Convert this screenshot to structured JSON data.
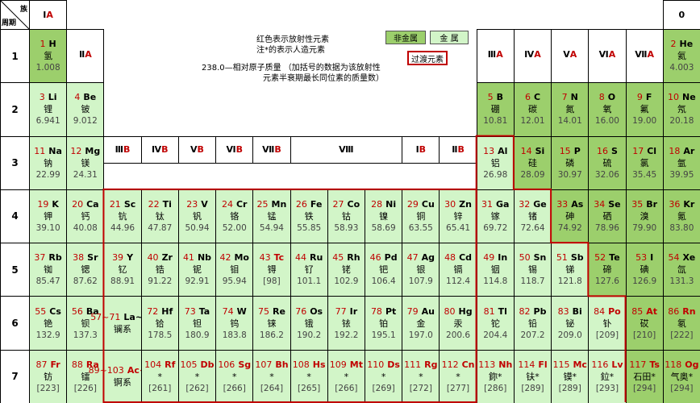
{
  "header": {
    "group_word": "族",
    "period_word": "周期",
    "left": {
      "roman": "Ⅰ",
      "letter": "A"
    },
    "right": "0"
  },
  "notes": [
    "红色表示放射性元素",
    "注*的表示人造元素",
    "238.0—相对原子质量 （加括号的数据为该放射性",
    "元素半衰期最长同位素的质量数）"
  ],
  "legend": {
    "nonmetal": {
      "label": "非金属",
      "color": "#9ccf6c"
    },
    "metal": {
      "label": "金 属",
      "color": "#d2f5c8"
    },
    "transition": {
      "label": "过渡元素",
      "color": "#c00000"
    }
  },
  "radioactive_color": "#c00000",
  "periods": [
    {
      "label": "1",
      "cells": [
        {
          "n": "1",
          "sym": "H",
          "name": "氢",
          "mass": "1.008",
          "kind": "nonmetal"
        },
        {
          "roman": "Ⅱ",
          "letter": "A"
        },
        null,
        null,
        null,
        null,
        null,
        null,
        null,
        null,
        null,
        null,
        {
          "roman": "Ⅲ",
          "letter": "A"
        },
        {
          "roman": "Ⅳ",
          "letter": "A"
        },
        {
          "roman": "Ⅴ",
          "letter": "A"
        },
        {
          "roman": "Ⅵ",
          "letter": "A"
        },
        {
          "roman": "Ⅶ",
          "letter": "A"
        },
        {
          "n": "2",
          "sym": "He",
          "name": "氦",
          "mass": "4.003",
          "kind": "nonmetal"
        }
      ]
    },
    {
      "label": "2",
      "cells": [
        {
          "n": "3",
          "sym": "Li",
          "name": "锂",
          "mass": "6.941",
          "kind": "metal"
        },
        {
          "n": "4",
          "sym": "Be",
          "name": "铍",
          "mass": "9.012",
          "kind": "metal"
        },
        null,
        null,
        null,
        null,
        null,
        null,
        null,
        null,
        null,
        null,
        {
          "n": "5",
          "sym": "B",
          "name": "硼",
          "mass": "10.81",
          "kind": "nonmetal"
        },
        {
          "n": "6",
          "sym": "C",
          "name": "碳",
          "mass": "12.01",
          "kind": "nonmetal"
        },
        {
          "n": "7",
          "sym": "N",
          "name": "氮",
          "mass": "14.01",
          "kind": "nonmetal"
        },
        {
          "n": "8",
          "sym": "O",
          "name": "氧",
          "mass": "16.00",
          "kind": "nonmetal"
        },
        {
          "n": "9",
          "sym": "F",
          "name": "氟",
          "mass": "19.00",
          "kind": "nonmetal"
        },
        {
          "n": "10",
          "sym": "Ne",
          "name": "氖",
          "mass": "20.18",
          "kind": "nonmetal"
        }
      ]
    },
    {
      "label": "3",
      "cells": [
        {
          "n": "11",
          "sym": "Na",
          "name": "钠",
          "mass": "22.99",
          "kind": "metal"
        },
        {
          "n": "12",
          "sym": "Mg",
          "name": "镁",
          "mass": "24.31",
          "kind": "metal"
        },
        {
          "roman": "Ⅲ",
          "letter": "B"
        },
        {
          "roman": "Ⅳ",
          "letter": "B"
        },
        {
          "roman": "Ⅴ",
          "letter": "B"
        },
        {
          "roman": "Ⅵ",
          "letter": "B"
        },
        {
          "roman": "Ⅶ",
          "letter": "B"
        },
        {
          "roman": "Ⅷ"
        },
        null,
        null,
        {
          "roman": "Ⅰ",
          "letter": "B"
        },
        {
          "roman": "Ⅱ",
          "letter": "B"
        },
        {
          "n": "13",
          "sym": "Al",
          "name": "铝",
          "mass": "26.98",
          "kind": "metal"
        },
        {
          "n": "14",
          "sym": "Si",
          "name": "硅",
          "mass": "28.09",
          "kind": "nonmetal"
        },
        {
          "n": "15",
          "sym": "P",
          "name": "磷",
          "mass": "30.97",
          "kind": "nonmetal"
        },
        {
          "n": "16",
          "sym": "S",
          "name": "硫",
          "mass": "32.06",
          "kind": "nonmetal"
        },
        {
          "n": "17",
          "sym": "Cl",
          "name": "氯",
          "mass": "35.45",
          "kind": "nonmetal"
        },
        {
          "n": "18",
          "sym": "Ar",
          "name": "氩",
          "mass": "39.95",
          "kind": "nonmetal"
        }
      ]
    },
    {
      "label": "4",
      "cells": [
        {
          "n": "19",
          "sym": "K",
          "name": "钾",
          "mass": "39.10",
          "kind": "metal"
        },
        {
          "n": "20",
          "sym": "Ca",
          "name": "钙",
          "mass": "40.08",
          "kind": "metal"
        },
        {
          "n": "21",
          "sym": "Sc",
          "name": "钪",
          "mass": "44.96",
          "kind": "metal"
        },
        {
          "n": "22",
          "sym": "Ti",
          "name": "钛",
          "mass": "47.87",
          "kind": "metal"
        },
        {
          "n": "23",
          "sym": "V",
          "name": "钒",
          "mass": "50.94",
          "kind": "metal"
        },
        {
          "n": "24",
          "sym": "Cr",
          "name": "铬",
          "mass": "52.00",
          "kind": "metal"
        },
        {
          "n": "25",
          "sym": "Mn",
          "name": "锰",
          "mass": "54.94",
          "kind": "metal"
        },
        {
          "n": "26",
          "sym": "Fe",
          "name": "铁",
          "mass": "55.85",
          "kind": "metal"
        },
        {
          "n": "27",
          "sym": "Co",
          "name": "钴",
          "mass": "58.93",
          "kind": "metal"
        },
        {
          "n": "28",
          "sym": "Ni",
          "name": "镍",
          "mass": "58.69",
          "kind": "metal"
        },
        {
          "n": "29",
          "sym": "Cu",
          "name": "铜",
          "mass": "63.55",
          "kind": "metal"
        },
        {
          "n": "30",
          "sym": "Zn",
          "name": "锌",
          "mass": "65.41",
          "kind": "metal"
        },
        {
          "n": "31",
          "sym": "Ga",
          "name": "镓",
          "mass": "69.72",
          "kind": "metal"
        },
        {
          "n": "32",
          "sym": "Ge",
          "name": "锗",
          "mass": "72.64",
          "kind": "metal"
        },
        {
          "n": "33",
          "sym": "As",
          "name": "砷",
          "mass": "74.92",
          "kind": "nonmetal"
        },
        {
          "n": "34",
          "sym": "Se",
          "name": "硒",
          "mass": "78.96",
          "kind": "nonmetal"
        },
        {
          "n": "35",
          "sym": "Br",
          "name": "溴",
          "mass": "79.90",
          "kind": "nonmetal"
        },
        {
          "n": "36",
          "sym": "Kr",
          "name": "氪",
          "mass": "83.80",
          "kind": "nonmetal"
        }
      ]
    },
    {
      "label": "5",
      "cells": [
        {
          "n": "37",
          "sym": "Rb",
          "name": "铷",
          "mass": "85.47",
          "kind": "metal"
        },
        {
          "n": "38",
          "sym": "Sr",
          "name": "锶",
          "mass": "87.62",
          "kind": "metal"
        },
        {
          "n": "39",
          "sym": "Y",
          "name": "钇",
          "mass": "88.91",
          "kind": "metal"
        },
        {
          "n": "40",
          "sym": "Zr",
          "name": "锆",
          "mass": "91.22",
          "kind": "metal"
        },
        {
          "n": "41",
          "sym": "Nb",
          "name": "铌",
          "mass": "92.91",
          "kind": "metal"
        },
        {
          "n": "42",
          "sym": "Mo",
          "name": "钼",
          "mass": "95.94",
          "kind": "metal"
        },
        {
          "n": "43",
          "sym": "Tc",
          "name": "锝",
          "mass": "[98]",
          "kind": "metal",
          "radioactive": true
        },
        {
          "n": "44",
          "sym": "Ru",
          "name": "钌",
          "mass": "101.1",
          "kind": "metal"
        },
        {
          "n": "45",
          "sym": "Rh",
          "name": "铑",
          "mass": "102.9",
          "kind": "metal"
        },
        {
          "n": "46",
          "sym": "Pd",
          "name": "钯",
          "mass": "106.4",
          "kind": "metal"
        },
        {
          "n": "47",
          "sym": "Ag",
          "name": "银",
          "mass": "107.9",
          "kind": "metal"
        },
        {
          "n": "48",
          "sym": "Cd",
          "name": "镉",
          "mass": "112.4",
          "kind": "metal"
        },
        {
          "n": "49",
          "sym": "In",
          "name": "铟",
          "mass": "114.8",
          "kind": "metal"
        },
        {
          "n": "50",
          "sym": "Sn",
          "name": "锡",
          "mass": "118.7",
          "kind": "metal"
        },
        {
          "n": "51",
          "sym": "Sb",
          "name": "锑",
          "mass": "121.8",
          "kind": "metal"
        },
        {
          "n": "52",
          "sym": "Te",
          "name": "碲",
          "mass": "127.6",
          "kind": "nonmetal"
        },
        {
          "n": "53",
          "sym": "I",
          "name": "碘",
          "mass": "126.9",
          "kind": "nonmetal"
        },
        {
          "n": "54",
          "sym": "Xe",
          "name": "氙",
          "mass": "131.3",
          "kind": "nonmetal"
        }
      ]
    },
    {
      "label": "6",
      "cells": [
        {
          "n": "55",
          "sym": "Cs",
          "name": "铯",
          "mass": "132.9",
          "kind": "metal"
        },
        {
          "n": "56",
          "sym": "Ba",
          "name": "钡",
          "mass": "137.3",
          "kind": "metal"
        },
        {
          "n": "57~71",
          "sym": "La~Lu",
          "name": "镧系",
          "kind": "metal"
        },
        {
          "n": "72",
          "sym": "Hf",
          "name": "铪",
          "mass": "178.5",
          "kind": "metal"
        },
        {
          "n": "73",
          "sym": "Ta",
          "name": "钽",
          "mass": "180.9",
          "kind": "metal"
        },
        {
          "n": "74",
          "sym": "W",
          "name": "钨",
          "mass": "183.8",
          "kind": "metal"
        },
        {
          "n": "75",
          "sym": "Re",
          "name": "铼",
          "mass": "186.2",
          "kind": "metal"
        },
        {
          "n": "76",
          "sym": "Os",
          "name": "锇",
          "mass": "190.2",
          "kind": "metal"
        },
        {
          "n": "77",
          "sym": "Ir",
          "name": "铱",
          "mass": "192.2",
          "kind": "metal"
        },
        {
          "n": "78",
          "sym": "Pt",
          "name": "铂",
          "mass": "195.1",
          "kind": "metal"
        },
        {
          "n": "79",
          "sym": "Au",
          "name": "金",
          "mass": "197.0",
          "kind": "metal"
        },
        {
          "n": "80",
          "sym": "Hg",
          "name": "汞",
          "mass": "200.6",
          "kind": "metal"
        },
        {
          "n": "81",
          "sym": "Tl",
          "name": "铊",
          "mass": "204.4",
          "kind": "metal"
        },
        {
          "n": "82",
          "sym": "Pb",
          "name": "铅",
          "mass": "207.2",
          "kind": "metal"
        },
        {
          "n": "83",
          "sym": "Bi",
          "name": "铋",
          "mass": "209.0",
          "kind": "metal"
        },
        {
          "n": "84",
          "sym": "Po",
          "name": "钋",
          "mass": "[209]",
          "kind": "metal",
          "radioactive": true
        },
        {
          "n": "85",
          "sym": "At",
          "name": "砹",
          "mass": "[210]",
          "kind": "nonmetal",
          "radioactive": true
        },
        {
          "n": "86",
          "sym": "Rn",
          "name": "氡",
          "mass": "[222]",
          "kind": "nonmetal",
          "radioactive": true
        }
      ]
    },
    {
      "label": "7",
      "cells": [
        {
          "n": "87",
          "sym": "Fr",
          "name": "钫",
          "mass": "[223]",
          "kind": "metal",
          "radioactive": true
        },
        {
          "n": "88",
          "sym": "Ra",
          "name": "镭",
          "mass": "[226]",
          "kind": "metal",
          "radioactive": true
        },
        {
          "n": "89~103",
          "sym": "Ac~Lr",
          "name": "锕系",
          "kind": "metal",
          "radioactive": true
        },
        {
          "n": "104",
          "sym": "Rf",
          "name": "*",
          "mass": "[261]",
          "kind": "metal",
          "radioactive": true
        },
        {
          "n": "105",
          "sym": "Db",
          "name": "*",
          "mass": "[262]",
          "kind": "metal",
          "radioactive": true
        },
        {
          "n": "106",
          "sym": "Sg",
          "name": "*",
          "mass": "[266]",
          "kind": "metal",
          "radioactive": true
        },
        {
          "n": "107",
          "sym": "Bh",
          "name": "*",
          "mass": "[264]",
          "kind": "metal",
          "radioactive": true
        },
        {
          "n": "108",
          "sym": "Hs",
          "name": "*",
          "mass": "[265]",
          "kind": "metal",
          "radioactive": true
        },
        {
          "n": "109",
          "sym": "Mt",
          "name": "*",
          "mass": "[266]",
          "kind": "metal",
          "radioactive": true
        },
        {
          "n": "110",
          "sym": "Ds",
          "name": "*",
          "mass": "[269]",
          "kind": "metal",
          "radioactive": true
        },
        {
          "n": "111",
          "sym": "Rg",
          "name": "*",
          "mass": "[272]",
          "kind": "metal",
          "radioactive": true
        },
        {
          "n": "112",
          "sym": "Cn",
          "name": "*",
          "mass": "[277]",
          "kind": "metal",
          "radioactive": true
        },
        {
          "n": "113",
          "sym": "Nh",
          "name": "鉨*",
          "mass": "[286]",
          "kind": "metal",
          "radioactive": true
        },
        {
          "n": "114",
          "sym": "Fl",
          "name": "𫓧*",
          "mass": "[289]",
          "kind": "metal",
          "radioactive": true
        },
        {
          "n": "115",
          "sym": "Mc",
          "name": "镆*",
          "mass": "[289]",
          "kind": "metal",
          "radioactive": true
        },
        {
          "n": "116",
          "sym": "Lv",
          "name": "鉝*",
          "mass": "[293]",
          "kind": "metal",
          "radioactive": true
        },
        {
          "n": "117",
          "sym": "Ts",
          "name": "石田*",
          "mass": "[294]",
          "kind": "nonmetal",
          "radioactive": true
        },
        {
          "n": "118",
          "sym": "Og",
          "name": "气奥*",
          "mass": "[294]",
          "kind": "nonmetal",
          "radioactive": true
        }
      ]
    }
  ]
}
